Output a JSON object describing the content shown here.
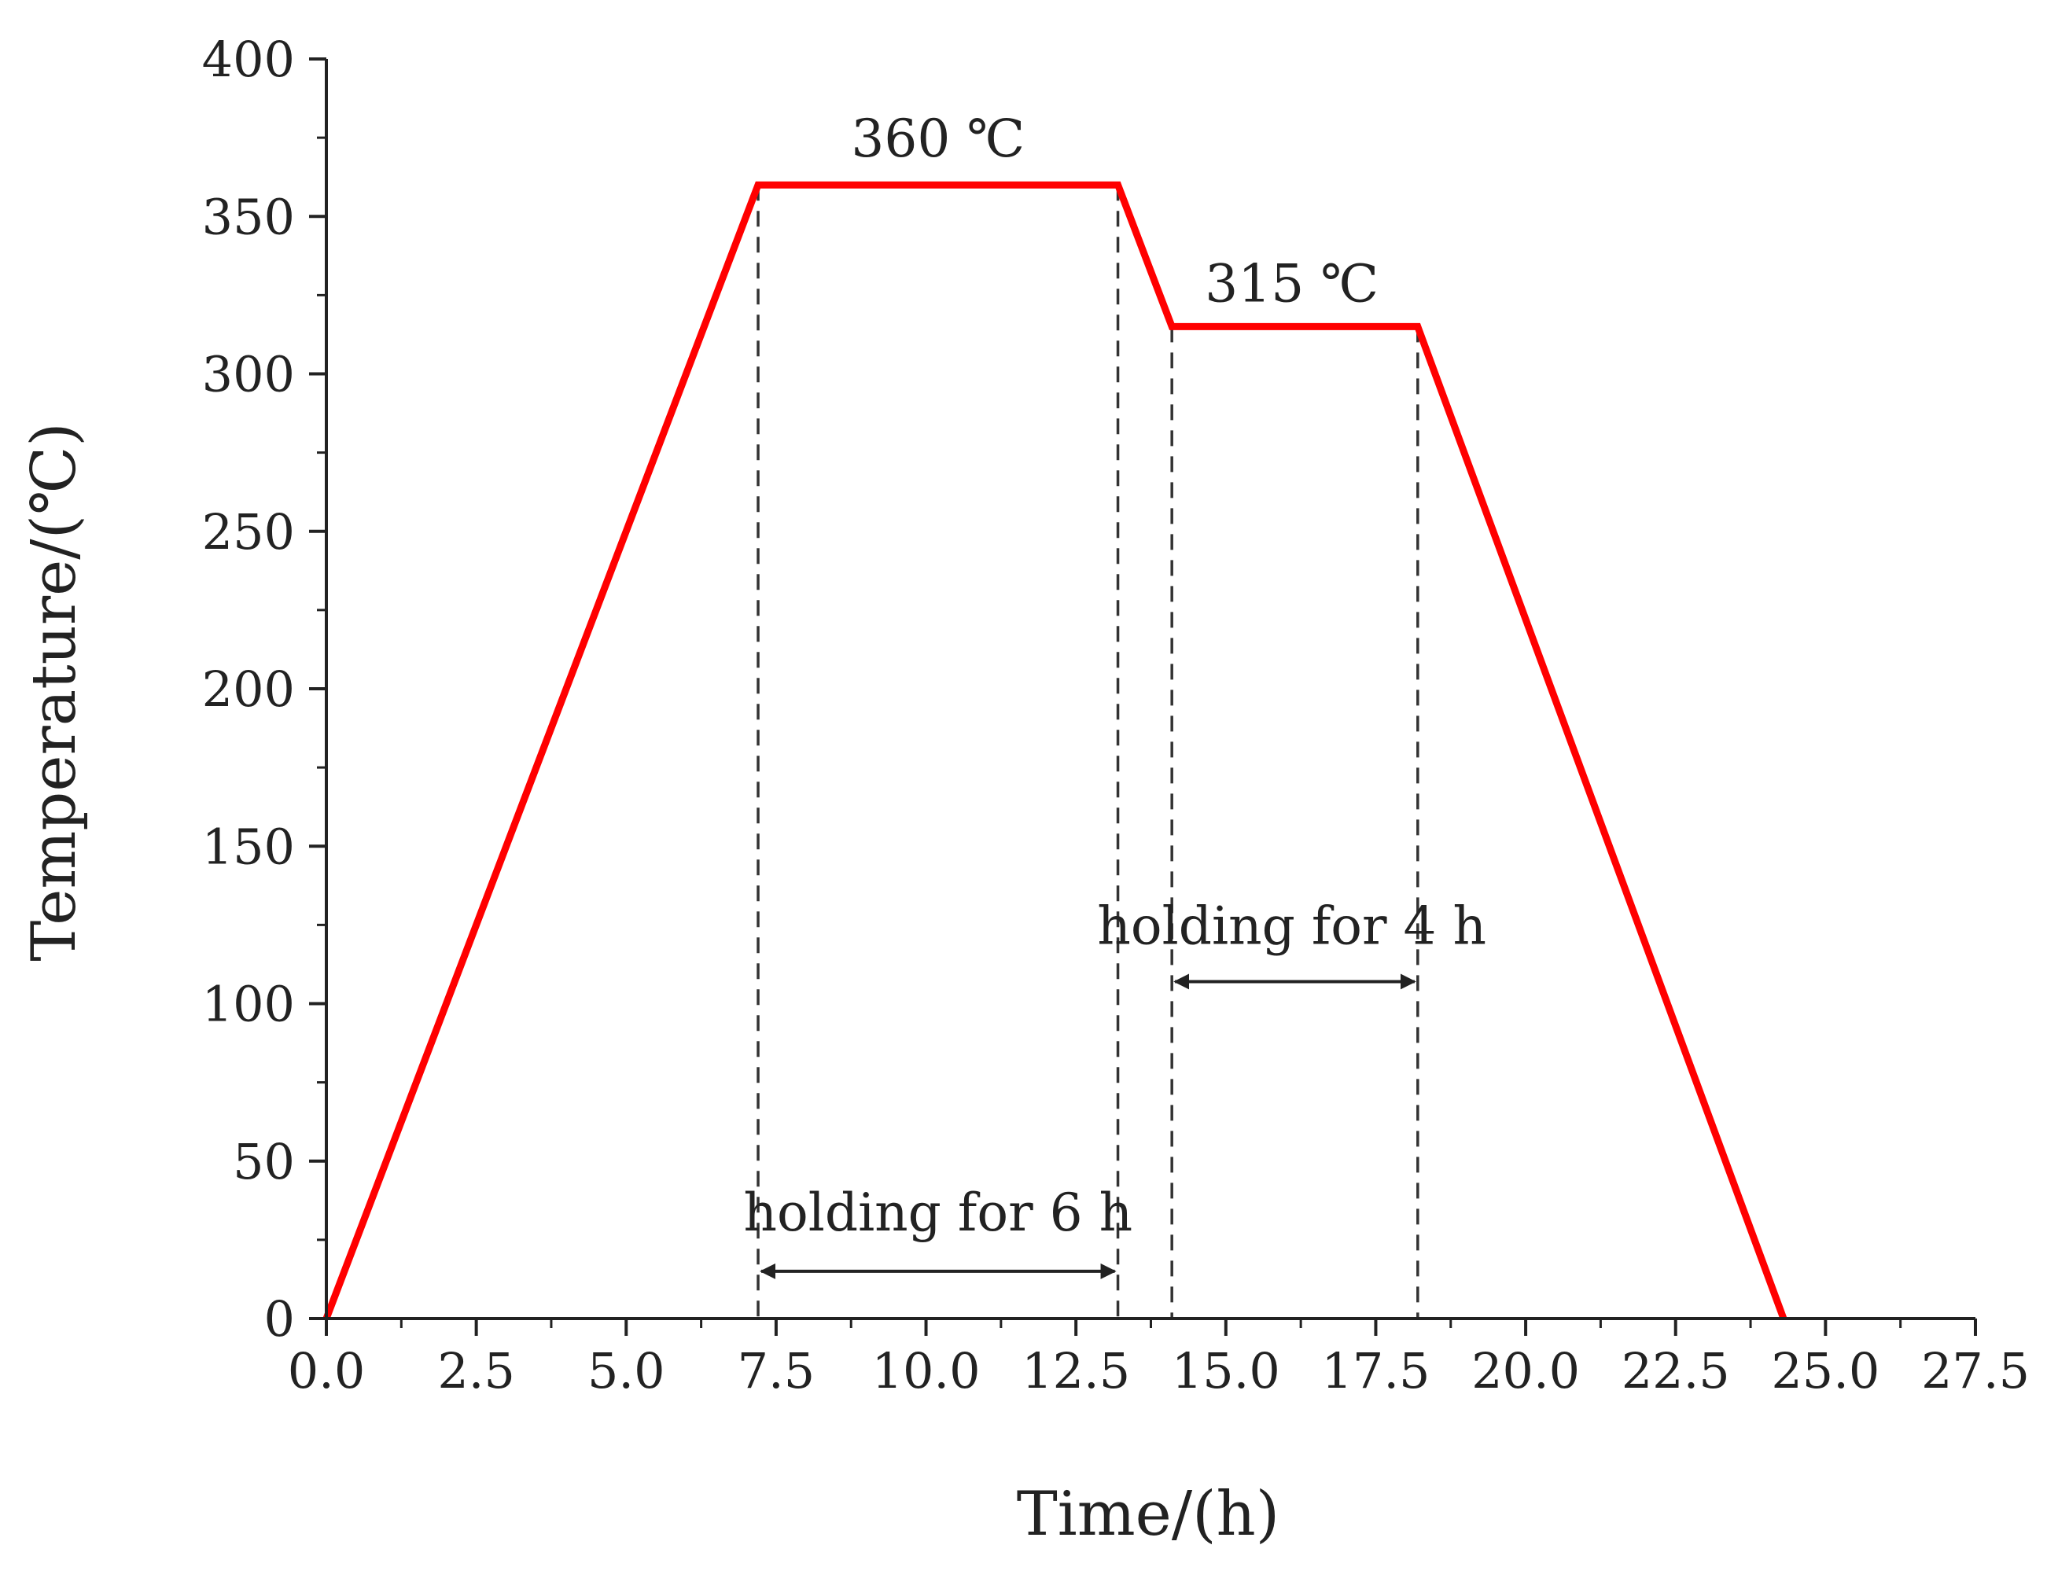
{
  "chart_data": {
    "type": "line",
    "title": "",
    "xlabel": "Time/(h)",
    "ylabel": "Temperature/(℃)",
    "xlim": [
      0,
      27.5
    ],
    "ylim": [
      0,
      400
    ],
    "x_ticks": [
      "0.0",
      "2.5",
      "5.0",
      "7.5",
      "10.0",
      "12.5",
      "15.0",
      "17.5",
      "20.0",
      "22.5",
      "25.0",
      "27.5"
    ],
    "y_ticks": [
      "0",
      "50",
      "100",
      "150",
      "200",
      "250",
      "300",
      "350",
      "400"
    ],
    "grid": false,
    "legend": "none",
    "series": [
      {
        "color": "#ff0000",
        "x": [
          0,
          7.2,
          13.2,
          14.1,
          18.2,
          24.3
        ],
        "y": [
          0,
          360,
          360,
          315,
          315,
          0
        ]
      }
    ],
    "guides": {
      "dashed_x": [
        7.2,
        13.2,
        14.1,
        18.2
      ]
    },
    "annotations": [
      {
        "text": "360 ℃",
        "x": 10.2,
        "y": 369
      },
      {
        "text": "315 ℃",
        "x": 16.1,
        "y": 323
      },
      {
        "text": "holding for 6 h",
        "x": 10.2,
        "y": 28,
        "arrow_from": 7.2,
        "arrow_to": 13.2,
        "arrow_y": 15
      },
      {
        "text": "holding for 4 h",
        "x": 16.1,
        "y": 119,
        "arrow_from": 14.1,
        "arrow_to": 18.2,
        "arrow_y": 107
      }
    ]
  }
}
